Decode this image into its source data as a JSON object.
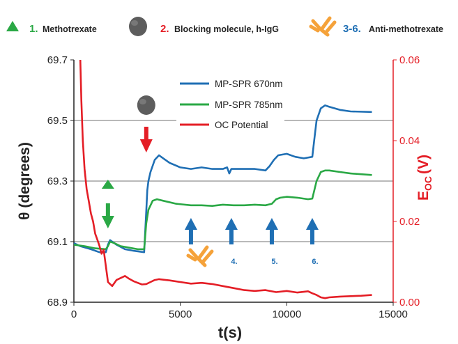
{
  "key": {
    "items": [
      {
        "number": "1.",
        "label": "Methotrexate",
        "number_color": "#2aa845",
        "icon": "green-triangle-icon"
      },
      {
        "number": "2.",
        "label": "Blocking molecule, h-IgG",
        "number_color": "#e41e26",
        "icon": "gray-sphere-icon"
      },
      {
        "number": "3-6.",
        "label": "Anti-methotrexate",
        "number_color": "#1f6fb4",
        "icon": "orange-antibody-icon"
      }
    ]
  },
  "chart_data": {
    "type": "line",
    "xlabel": "t(s)",
    "ylabel_left": "θ (degrees)",
    "ylabel_right_main": "E",
    "ylabel_right_sub": "OC",
    "ylabel_right_unit": "(V)",
    "xlim": [
      0,
      15000
    ],
    "ylim_left": [
      68.9,
      69.7
    ],
    "ylim_right": [
      0.0,
      0.06
    ],
    "x_ticks": [
      "0",
      "5000",
      "10000",
      "15000"
    ],
    "y_left_ticks": [
      "68.9",
      "69.1",
      "69.3",
      "69.5",
      "69.7"
    ],
    "y_right_ticks": [
      "0.00",
      "0.02",
      "0.04",
      "0.06"
    ],
    "grid": "horizontal",
    "legend_position": "top-center",
    "series": [
      {
        "name": "MP-SPR 670nm",
        "axis": "left",
        "color": "#1f6fb4",
        "x": [
          0,
          300,
          800,
          1200,
          1500,
          1600,
          1700,
          1800,
          2000,
          2400,
          2800,
          3300,
          3400,
          3450,
          3500,
          3600,
          3800,
          4000,
          4200,
          4500,
          5000,
          5500,
          6000,
          6500,
          7000,
          7200,
          7300,
          7400,
          7600,
          8000,
          8500,
          9000,
          9200,
          9400,
          9600,
          10000,
          10400,
          10800,
          11200,
          11300,
          11400,
          11600,
          11800,
          12000,
          12500,
          13000,
          14000
        ],
        "y": [
          69.095,
          69.085,
          69.075,
          69.065,
          69.065,
          69.09,
          69.105,
          69.1,
          69.09,
          69.075,
          69.07,
          69.065,
          69.2,
          69.27,
          69.3,
          69.33,
          69.37,
          69.385,
          69.375,
          69.36,
          69.345,
          69.34,
          69.345,
          69.34,
          69.34,
          69.345,
          69.325,
          69.34,
          69.34,
          69.34,
          69.34,
          69.335,
          69.35,
          69.37,
          69.385,
          69.39,
          69.38,
          69.375,
          69.38,
          69.44,
          69.5,
          69.54,
          69.55,
          69.545,
          69.535,
          69.53,
          69.528
        ]
      },
      {
        "name": "MP-SPR 785nm",
        "axis": "left",
        "color": "#2aa845",
        "x": [
          0,
          500,
          1000,
          1500,
          1600,
          1700,
          1900,
          2200,
          2600,
          3000,
          3300,
          3400,
          3500,
          3700,
          3900,
          4200,
          4800,
          5500,
          6000,
          6500,
          7000,
          7500,
          8000,
          8500,
          9000,
          9300,
          9500,
          9700,
          10000,
          10500,
          11000,
          11200,
          11400,
          11600,
          11800,
          12000,
          12500,
          13000,
          14000
        ],
        "y": [
          69.09,
          69.085,
          69.078,
          69.075,
          69.085,
          69.1,
          69.095,
          69.085,
          69.08,
          69.075,
          69.075,
          69.16,
          69.205,
          69.235,
          69.24,
          69.235,
          69.225,
          69.22,
          69.22,
          69.218,
          69.222,
          69.22,
          69.22,
          69.222,
          69.22,
          69.225,
          69.24,
          69.245,
          69.248,
          69.245,
          69.24,
          69.242,
          69.3,
          69.33,
          69.335,
          69.335,
          69.33,
          69.325,
          69.32
        ]
      },
      {
        "name": "OC Potential",
        "axis": "right",
        "color": "#e41e26",
        "x": [
          300,
          350,
          420,
          500,
          600,
          700,
          800,
          900,
          1000,
          1100,
          1200,
          1300,
          1400,
          1500,
          1600,
          1700,
          1800,
          2000,
          2200,
          2400,
          2600,
          2800,
          3000,
          3200,
          3400,
          3600,
          3800,
          4000,
          4500,
          5000,
          5500,
          6000,
          6500,
          7000,
          7500,
          8000,
          8500,
          9000,
          9500,
          10000,
          10500,
          11000,
          11200,
          11400,
          11600,
          11800,
          12000,
          12500,
          13000,
          13500,
          14000
        ],
        "y": [
          0.06,
          0.05,
          0.04,
          0.033,
          0.028,
          0.025,
          0.022,
          0.02,
          0.017,
          0.0155,
          0.014,
          0.012,
          0.013,
          0.009,
          0.005,
          0.0045,
          0.004,
          0.0055,
          0.006,
          0.0065,
          0.0058,
          0.0052,
          0.0048,
          0.0044,
          0.0045,
          0.005,
          0.0055,
          0.0057,
          0.0054,
          0.005,
          0.0046,
          0.0048,
          0.0045,
          0.004,
          0.0035,
          0.003,
          0.0028,
          0.003,
          0.0025,
          0.0028,
          0.0024,
          0.0027,
          0.0022,
          0.0018,
          0.0012,
          0.001,
          0.0012,
          0.0014,
          0.0015,
          0.0016,
          0.0018
        ]
      }
    ],
    "annotations": {
      "antibody_steps": [
        {
          "x": 5500,
          "label": ""
        },
        {
          "x": 7400,
          "label": "4."
        },
        {
          "x": 9300,
          "label": "5."
        },
        {
          "x": 11200,
          "label": "6."
        }
      ],
      "methotrexate_injection_x": 1600,
      "blocking_injection_x": 3400
    }
  },
  "colors": {
    "blue": "#1f6fb4",
    "green": "#2aa845",
    "red": "#e41e26",
    "orange": "#f5a23a",
    "grid": "#8f8f8f"
  }
}
